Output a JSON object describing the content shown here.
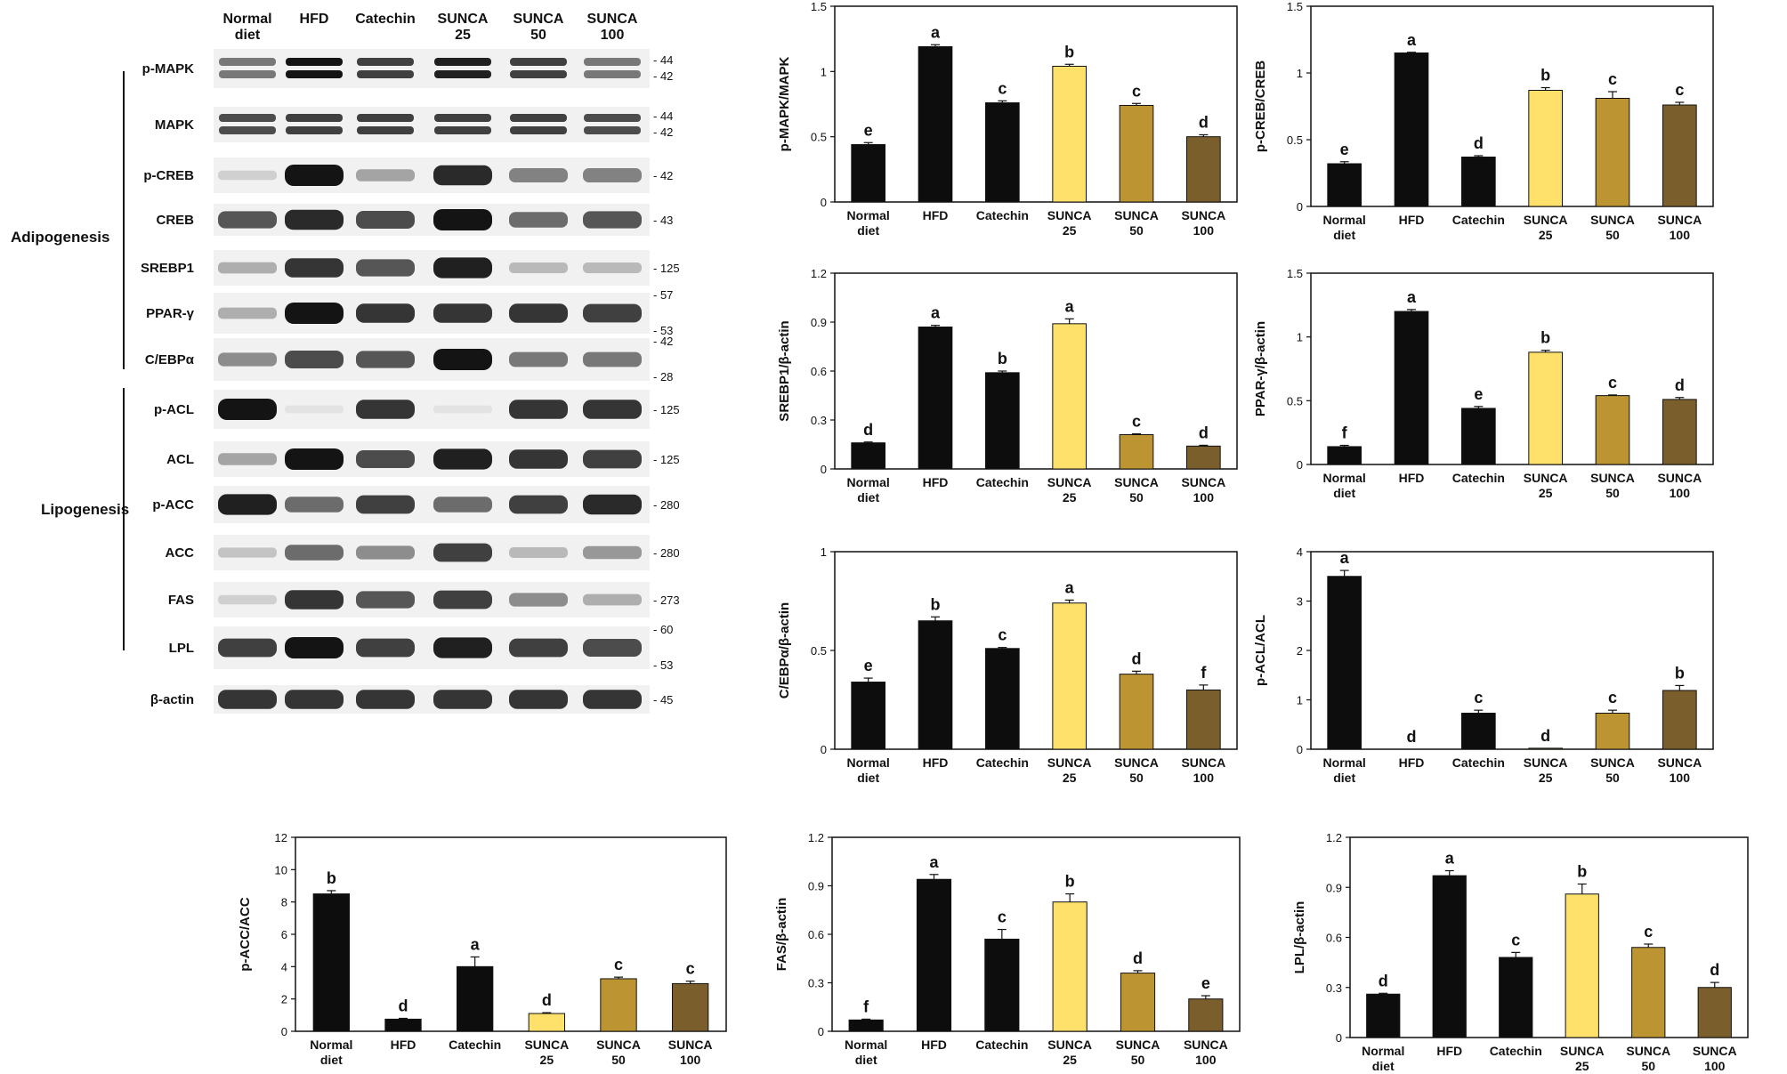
{
  "colors": {
    "normal": "#0d0d0d",
    "hfd": "#0d0d0d",
    "catechin": "#0d0d0d",
    "sunca25": "#fde16a",
    "sunca50": "#bd9432",
    "sunca100": "#7a5e2c",
    "band": "#141414"
  },
  "blot": {
    "lanes": [
      [
        "Normal",
        "diet"
      ],
      [
        "HFD"
      ],
      [
        "Catechin"
      ],
      [
        "SUNCA",
        "25"
      ],
      [
        "SUNCA",
        "50"
      ],
      [
        "SUNCA",
        "100"
      ]
    ],
    "groups": [
      "Adipogenesis",
      "Lipogenesis"
    ],
    "rows": [
      {
        "label": "p-MAPK",
        "markers": [
          "44",
          "42"
        ],
        "intensity": [
          0.55,
          1.0,
          0.8,
          0.95,
          0.8,
          0.55
        ],
        "double": true
      },
      {
        "label": "MAPK",
        "markers": [
          "44",
          "42"
        ],
        "intensity": [
          0.75,
          0.8,
          0.8,
          0.8,
          0.8,
          0.75
        ],
        "double": true
      },
      {
        "label": "p-CREB",
        "markers": [
          "42"
        ],
        "intensity": [
          0.15,
          1.0,
          0.35,
          0.9,
          0.5,
          0.5
        ],
        "double": false
      },
      {
        "label": "CREB",
        "markers": [
          "43"
        ],
        "intensity": [
          0.7,
          0.9,
          0.75,
          1.0,
          0.6,
          0.7
        ],
        "double": false
      },
      {
        "label": "SREBP1",
        "markers": [
          "125"
        ],
        "intensity": [
          0.3,
          0.85,
          0.7,
          0.95,
          0.25,
          0.25
        ],
        "double": false
      },
      {
        "label": "PPAR-γ",
        "markers": [
          "57",
          "53"
        ],
        "intensity": [
          0.3,
          1.0,
          0.85,
          0.85,
          0.85,
          0.8
        ],
        "double": false
      },
      {
        "label": "C/EBPα",
        "markers": [
          "42",
          "28"
        ],
        "intensity": [
          0.45,
          0.75,
          0.7,
          1.0,
          0.55,
          0.55
        ],
        "double": false
      },
      {
        "label": "p-ACL",
        "markers": [
          "125"
        ],
        "intensity": [
          1.0,
          0.05,
          0.85,
          0.05,
          0.85,
          0.85
        ],
        "double": false
      },
      {
        "label": "ACL",
        "markers": [
          "125"
        ],
        "intensity": [
          0.35,
          1.0,
          0.75,
          0.95,
          0.85,
          0.8
        ],
        "double": false
      },
      {
        "label": "p-ACC",
        "markers": [
          "280"
        ],
        "intensity": [
          0.95,
          0.6,
          0.8,
          0.6,
          0.8,
          0.9
        ],
        "double": false
      },
      {
        "label": "ACC",
        "markers": [
          "280"
        ],
        "intensity": [
          0.2,
          0.6,
          0.45,
          0.8,
          0.25,
          0.4
        ],
        "double": false
      },
      {
        "label": "FAS",
        "markers": [
          "273"
        ],
        "intensity": [
          0.15,
          0.85,
          0.7,
          0.8,
          0.45,
          0.3
        ],
        "double": false
      },
      {
        "label": "LPL",
        "markers": [
          "60",
          "53"
        ],
        "intensity": [
          0.8,
          1.0,
          0.8,
          0.95,
          0.8,
          0.75
        ],
        "double": false
      },
      {
        "label": "β-actin",
        "markers": [
          "45"
        ],
        "intensity": [
          0.85,
          0.85,
          0.85,
          0.85,
          0.85,
          0.85
        ],
        "double": false
      }
    ]
  },
  "chart_data": [
    {
      "type": "bar",
      "categories": [
        [
          "Normal",
          "diet"
        ],
        [
          "HFD"
        ],
        [
          "Catechin"
        ],
        [
          "SUNCA",
          "25"
        ],
        [
          "SUNCA",
          "50"
        ],
        [
          "SUNCA",
          "100"
        ]
      ],
      "ylabel": "p-MAPK/MAPK",
      "ylim": [
        0,
        1.5
      ],
      "yticks": [
        "0",
        "0.5",
        "1",
        "1.5"
      ],
      "values": [
        0.44,
        1.19,
        0.76,
        1.04,
        0.74,
        0.5
      ],
      "errors": [
        0.015,
        0.015,
        0.015,
        0.015,
        0.015,
        0.015
      ],
      "letters": [
        "e",
        "a",
        "c",
        "b",
        "c",
        "d"
      ]
    },
    {
      "type": "bar",
      "categories": [
        [
          "Normal",
          "diet"
        ],
        [
          "HFD"
        ],
        [
          "Catechin"
        ],
        [
          "SUNCA",
          "25"
        ],
        [
          "SUNCA",
          "50"
        ],
        [
          "SUNCA",
          "100"
        ]
      ],
      "ylabel": "p-CREB/CREB",
      "ylim": [
        0,
        1.5
      ],
      "yticks": [
        "0",
        "0.5",
        "1",
        "1.5"
      ],
      "values": [
        0.32,
        1.15,
        0.37,
        0.87,
        0.81,
        0.76
      ],
      "errors": [
        0.015,
        0.005,
        0.01,
        0.02,
        0.05,
        0.02
      ],
      "letters": [
        "e",
        "a",
        "d",
        "b",
        "c",
        "c"
      ]
    },
    {
      "type": "bar",
      "categories": [
        [
          "Normal",
          "diet"
        ],
        [
          "HFD"
        ],
        [
          "Catechin"
        ],
        [
          "SUNCA",
          "25"
        ],
        [
          "SUNCA",
          "50"
        ],
        [
          "SUNCA",
          "100"
        ]
      ],
      "ylabel": "SREBP1/β-actin",
      "ylim": [
        0,
        1.2
      ],
      "yticks": [
        "0",
        "0.3",
        "0.6",
        "0.9",
        "1.2"
      ],
      "values": [
        0.16,
        0.87,
        0.59,
        0.89,
        0.21,
        0.14
      ],
      "errors": [
        0.005,
        0.01,
        0.01,
        0.03,
        0.005,
        0.005
      ],
      "letters": [
        "d",
        "a",
        "b",
        "a",
        "c",
        "d"
      ]
    },
    {
      "type": "bar",
      "categories": [
        [
          "Normal",
          "diet"
        ],
        [
          "HFD"
        ],
        [
          "Catechin"
        ],
        [
          "SUNCA",
          "25"
        ],
        [
          "SUNCA",
          "50"
        ],
        [
          "SUNCA",
          "100"
        ]
      ],
      "ylabel": "PPAR-γ/β-actin",
      "ylim": [
        0,
        1.5
      ],
      "yticks": [
        "0",
        "0.5",
        "1",
        "1.5"
      ],
      "values": [
        0.14,
        1.2,
        0.44,
        0.88,
        0.54,
        0.51
      ],
      "errors": [
        0.01,
        0.015,
        0.015,
        0.015,
        0.005,
        0.015
      ],
      "letters": [
        "f",
        "a",
        "e",
        "b",
        "c",
        "d"
      ]
    },
    {
      "type": "bar",
      "categories": [
        [
          "Normal",
          "diet"
        ],
        [
          "HFD"
        ],
        [
          "Catechin"
        ],
        [
          "SUNCA",
          "25"
        ],
        [
          "SUNCA",
          "50"
        ],
        [
          "SUNCA",
          "100"
        ]
      ],
      "ylabel": "C/EBPα/β-actin",
      "ylim": [
        0,
        1
      ],
      "yticks": [
        "0",
        "0.5",
        "1"
      ],
      "values": [
        0.34,
        0.65,
        0.51,
        0.74,
        0.38,
        0.3
      ],
      "errors": [
        0.02,
        0.02,
        0.005,
        0.015,
        0.015,
        0.025
      ],
      "letters": [
        "e",
        "b",
        "c",
        "a",
        "d",
        "f"
      ]
    },
    {
      "type": "bar",
      "categories": [
        [
          "Normal",
          "diet"
        ],
        [
          "HFD"
        ],
        [
          "Catechin"
        ],
        [
          "SUNCA",
          "25"
        ],
        [
          "SUNCA",
          "50"
        ],
        [
          "SUNCA",
          "100"
        ]
      ],
      "ylabel": "p-ACL/ACL",
      "ylim": [
        0,
        4
      ],
      "yticks": [
        "0",
        "1",
        "2",
        "3",
        "4"
      ],
      "values": [
        3.5,
        0.0,
        0.73,
        0.02,
        0.73,
        1.19
      ],
      "errors": [
        0.12,
        0.0,
        0.06,
        0.0,
        0.06,
        0.1
      ],
      "letters": [
        "a",
        "d",
        "c",
        "d",
        "c",
        "b"
      ]
    },
    {
      "type": "bar",
      "categories": [
        [
          "Normal",
          "diet"
        ],
        [
          "HFD"
        ],
        [
          "Catechin"
        ],
        [
          "SUNCA",
          "25"
        ],
        [
          "SUNCA",
          "50"
        ],
        [
          "SUNCA",
          "100"
        ]
      ],
      "ylabel": "p-ACC/ACC",
      "ylim": [
        0,
        12
      ],
      "yticks": [
        "0",
        "2",
        "4",
        "6",
        "8",
        "10",
        "12"
      ],
      "values": [
        8.5,
        0.75,
        4.0,
        1.1,
        3.25,
        2.95
      ],
      "errors": [
        0.2,
        0.05,
        0.6,
        0.05,
        0.1,
        0.15
      ],
      "letters": [
        "b",
        "d",
        "a",
        "d",
        "c",
        "c"
      ]
    },
    {
      "type": "bar",
      "categories": [
        [
          "Normal",
          "diet"
        ],
        [
          "HFD"
        ],
        [
          "Catechin"
        ],
        [
          "SUNCA",
          "25"
        ],
        [
          "SUNCA",
          "50"
        ],
        [
          "SUNCA",
          "100"
        ]
      ],
      "ylabel": "FAS/β-actin",
      "ylim": [
        0,
        1.2
      ],
      "yticks": [
        "0",
        "0.3",
        "0.6",
        "0.9",
        "1.2"
      ],
      "values": [
        0.07,
        0.94,
        0.57,
        0.8,
        0.36,
        0.2
      ],
      "errors": [
        0.005,
        0.03,
        0.06,
        0.05,
        0.015,
        0.02
      ],
      "letters": [
        "f",
        "a",
        "c",
        "b",
        "d",
        "e"
      ]
    },
    {
      "type": "bar",
      "categories": [
        [
          "Normal",
          "diet"
        ],
        [
          "HFD"
        ],
        [
          "Catechin"
        ],
        [
          "SUNCA",
          "25"
        ],
        [
          "SUNCA",
          "50"
        ],
        [
          "SUNCA",
          "100"
        ]
      ],
      "ylabel": "LPL/β-actin",
      "ylim": [
        0,
        1.2
      ],
      "yticks": [
        "0",
        "0.3",
        "0.6",
        "0.9",
        "1.2"
      ],
      "values": [
        0.26,
        0.97,
        0.48,
        0.86,
        0.54,
        0.3
      ],
      "errors": [
        0.005,
        0.03,
        0.03,
        0.06,
        0.02,
        0.03
      ],
      "letters": [
        "d",
        "a",
        "c",
        "b",
        "c",
        "d"
      ]
    }
  ]
}
